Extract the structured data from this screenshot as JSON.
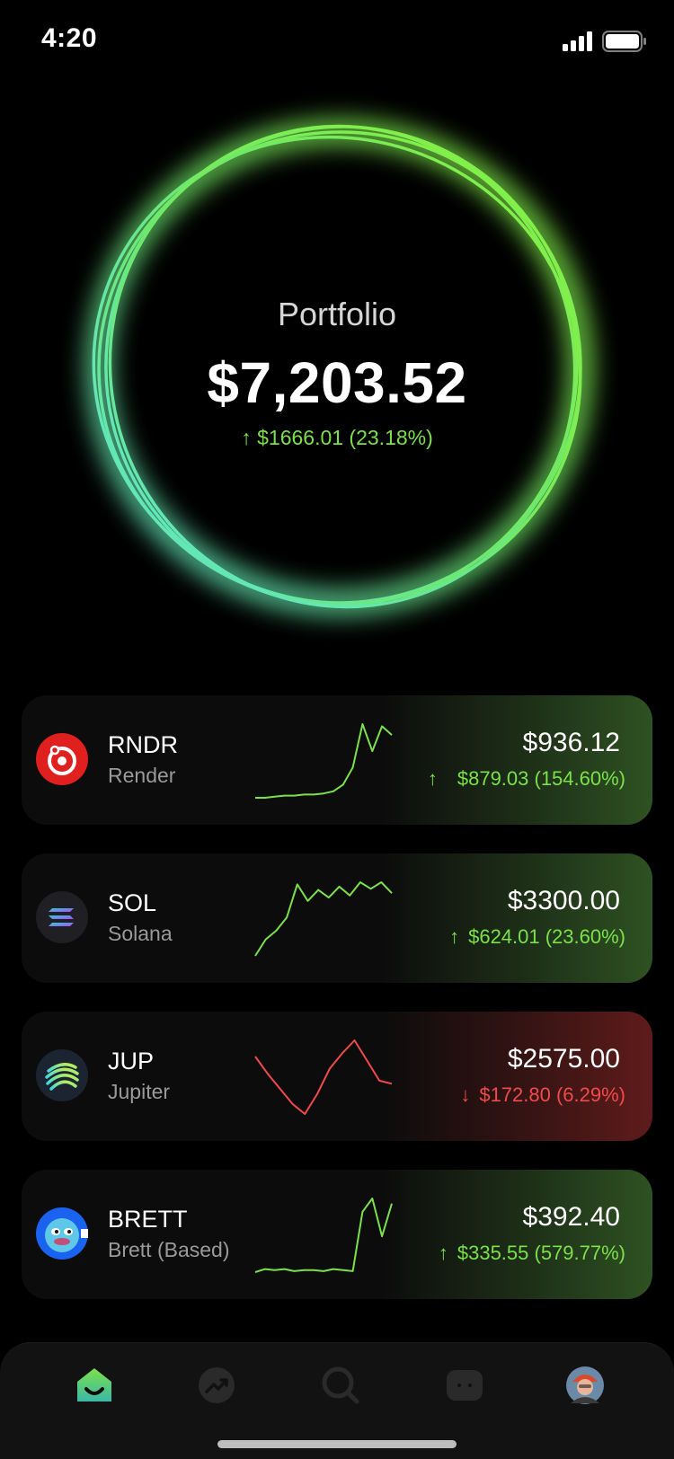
{
  "status": {
    "time": "4:20"
  },
  "portfolio": {
    "label": "Portfolio",
    "value": "$7,203.52",
    "change": "$1666.01 (23.18%)",
    "trend": "up"
  },
  "assets": [
    {
      "symbol": "RNDR",
      "name": "Render",
      "price": "$936.12",
      "change": "$879.03 (154.60%)",
      "trend": "up",
      "logo": "render-logo-icon",
      "sparkline": [
        2,
        2,
        3,
        4,
        4,
        5,
        5,
        6,
        8,
        14,
        30,
        70,
        45,
        68,
        60
      ]
    },
    {
      "symbol": "SOL",
      "name": "Solana",
      "price": "$3300.00",
      "change": "$624.01 (23.60%)",
      "trend": "up",
      "logo": "solana-logo-icon",
      "sparkline": [
        5,
        20,
        28,
        40,
        70,
        55,
        65,
        58,
        68,
        60,
        72,
        66,
        72,
        62
      ]
    },
    {
      "symbol": "JUP",
      "name": "Jupiter",
      "price": "$2575.00",
      "change": "$172.80 (6.29%)",
      "trend": "down",
      "logo": "jupiter-logo-icon",
      "sparkline": [
        62,
        45,
        30,
        15,
        5,
        25,
        50,
        65,
        78,
        58,
        38,
        35
      ]
    },
    {
      "symbol": "BRETT",
      "name": "Brett (Based)",
      "price": "$392.40",
      "change": "$335.55 (579.77%)",
      "trend": "up",
      "logo": "brett-logo-icon",
      "sparkline": [
        3,
        6,
        5,
        6,
        4,
        5,
        5,
        4,
        6,
        5,
        4,
        62,
        75,
        38,
        70
      ]
    }
  ],
  "tabs": [
    {
      "name": "home",
      "icon": "home-icon",
      "active": true
    },
    {
      "name": "trending",
      "icon": "trending-icon",
      "active": false
    },
    {
      "name": "search",
      "icon": "search-icon",
      "active": false
    },
    {
      "name": "messages",
      "icon": "chat-icon",
      "active": false
    },
    {
      "name": "profile",
      "icon": "avatar-icon",
      "active": false
    }
  ],
  "colors": {
    "up": "#7be14a",
    "down": "#f14a4a",
    "ring_start": "#8af23c",
    "ring_end": "#5ee6d8"
  }
}
